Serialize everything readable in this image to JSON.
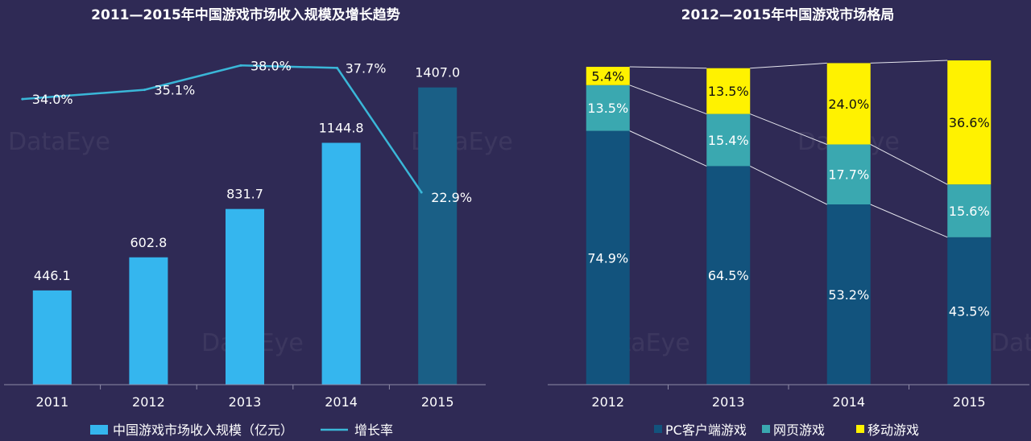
{
  "colors": {
    "background": "#2f2a55",
    "revenue_bar": "#35b6ee",
    "revenue_bar_highlight": "#1a5f86",
    "growth_line": "#3ab7d8",
    "pc": "#12537d",
    "web": "#3aa8b0",
    "mobile": "#fff200",
    "axis": "#8d8aa6",
    "connector": "#e6e6ee"
  },
  "watermark": "DataEye",
  "chart_data": [
    {
      "type": "bar",
      "title": "2011—2015年中国游戏市场收入规模及增长趋势",
      "categories": [
        "2011",
        "2012",
        "2013",
        "2014",
        "2015"
      ],
      "ylim": [
        0,
        1600
      ],
      "series": [
        {
          "name": "中国游戏市场收入规模（亿元）",
          "type": "bar",
          "values": [
            446.1,
            602.8,
            831.7,
            1144.8,
            1407.0
          ],
          "labels": [
            "446.1",
            "602.8",
            "831.7",
            "1144.8",
            "1407.0"
          ]
        },
        {
          "name": "增长率",
          "type": "line",
          "values": [
            34.0,
            35.1,
            38.0,
            37.7,
            22.9
          ],
          "labels": [
            "34.0%",
            "35.1%",
            "38.0%",
            "37.7%",
            "22.9%"
          ],
          "ylim": [
            0,
            41
          ]
        }
      ],
      "legend": {
        "position": "bottom",
        "items": [
          "中国游戏市场收入规模（亿元）",
          "增长率"
        ]
      }
    },
    {
      "type": "bar",
      "stacked": true,
      "percent": true,
      "title": "2012—2015年中国游戏市场格局",
      "categories": [
        "2012",
        "2013",
        "2014",
        "2015"
      ],
      "series": [
        {
          "name": "PC客户端游戏",
          "values": [
            74.9,
            64.5,
            53.2,
            43.5
          ],
          "labels": [
            "74.9%",
            "64.5%",
            "53.2%",
            "43.5%"
          ]
        },
        {
          "name": "网页游戏",
          "values": [
            13.5,
            15.4,
            17.7,
            15.6
          ],
          "labels": [
            "13.5%",
            "15.4%",
            "17.7%",
            "15.6%"
          ]
        },
        {
          "name": "移动游戏",
          "values": [
            5.4,
            13.5,
            24.0,
            36.6
          ],
          "labels": [
            "5.4%",
            "13.5%",
            "24.0%",
            "36.6%"
          ]
        }
      ],
      "legend": {
        "position": "bottom",
        "items": [
          "PC客户端游戏",
          "网页游戏",
          "移动游戏"
        ]
      }
    }
  ]
}
